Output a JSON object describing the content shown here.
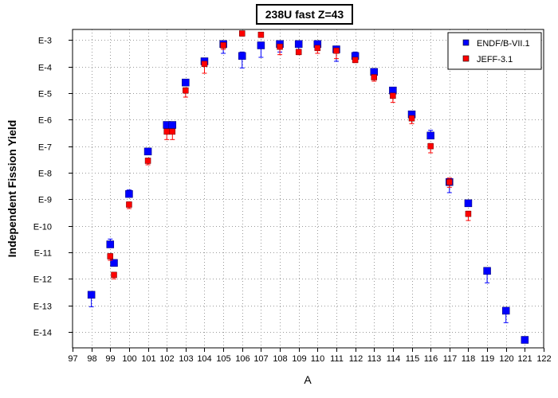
{
  "chart_data": {
    "type": "scatter",
    "title": "238U fast Z=43",
    "xlabel": "A",
    "ylabel": "Independent Fission Yield",
    "x_range": [
      97,
      122
    ],
    "x_ticks": [
      97,
      98,
      99,
      100,
      101,
      102,
      103,
      104,
      105,
      106,
      107,
      108,
      109,
      110,
      111,
      112,
      113,
      114,
      115,
      116,
      117,
      118,
      119,
      120,
      121,
      122
    ],
    "y_scale": "log",
    "y_range_exponent": [
      -14.6,
      -2.6
    ],
    "y_ticks": [
      {
        "exp": -3,
        "label": "E-3"
      },
      {
        "exp": -4,
        "label": "E-4"
      },
      {
        "exp": -5,
        "label": "E-5"
      },
      {
        "exp": -6,
        "label": "E-6"
      },
      {
        "exp": -7,
        "label": "E-7"
      },
      {
        "exp": -8,
        "label": "E-8"
      },
      {
        "exp": -9,
        "label": "E-9"
      },
      {
        "exp": -10,
        "label": "E-10"
      },
      {
        "exp": -11,
        "label": "E-11"
      },
      {
        "exp": -12,
        "label": "E-12"
      },
      {
        "exp": -13,
        "label": "E-13"
      },
      {
        "exp": -14,
        "label": "E-14"
      }
    ],
    "grid": true,
    "legend_position": "top-right",
    "series": [
      {
        "name": "ENDF/B-VII.1",
        "color": "#0000ff",
        "marker": "square",
        "points": [
          {
            "x": 98,
            "exp": -12.6,
            "err_lo": 0.45,
            "err_hi": 0.0
          },
          {
            "x": 99,
            "exp": -10.7,
            "err_lo": 0.1,
            "err_hi": 0.2
          },
          {
            "x": 99.2,
            "exp": -11.4,
            "err_lo": 0.1,
            "err_hi": 0.1
          },
          {
            "x": 100,
            "exp": -8.8,
            "err_lo": 0.1,
            "err_hi": 0.15
          },
          {
            "x": 101,
            "exp": -7.2,
            "err_lo": 0.05,
            "err_hi": 0.05
          },
          {
            "x": 102,
            "exp": -6.2,
            "err_lo": 0.1,
            "err_hi": 0.0
          },
          {
            "x": 102.3,
            "exp": -6.2,
            "err_lo": 0.1,
            "err_hi": 0.0
          },
          {
            "x": 103,
            "exp": -4.6,
            "err_lo": 0.1,
            "err_hi": 0.1
          },
          {
            "x": 104,
            "exp": -3.8,
            "err_lo": 0.1,
            "err_hi": 0.1
          },
          {
            "x": 105,
            "exp": -3.15,
            "err_lo": 0.35,
            "err_hi": 0.05
          },
          {
            "x": 106,
            "exp": -3.6,
            "err_lo": 0.45,
            "err_hi": 0.15
          },
          {
            "x": 107,
            "exp": -3.2,
            "err_lo": 0.45,
            "err_hi": 0.0
          },
          {
            "x": 108,
            "exp": -3.15,
            "err_lo": 0.3,
            "err_hi": 0.1
          },
          {
            "x": 109,
            "exp": -3.15,
            "err_lo": 0.2,
            "err_hi": 0.1
          },
          {
            "x": 110,
            "exp": -3.15,
            "err_lo": 0.2,
            "err_hi": 0.1
          },
          {
            "x": 111,
            "exp": -3.35,
            "err_lo": 0.45,
            "err_hi": 0.0
          },
          {
            "x": 112,
            "exp": -3.6,
            "err_lo": 0.1,
            "err_hi": 0.15
          },
          {
            "x": 113,
            "exp": -4.2,
            "err_lo": 0.05,
            "err_hi": 0.05
          },
          {
            "x": 114,
            "exp": -4.9,
            "err_lo": 0.1,
            "err_hi": 0.1
          },
          {
            "x": 115,
            "exp": -5.8,
            "err_lo": 0.1,
            "err_hi": 0.1
          },
          {
            "x": 116,
            "exp": -6.6,
            "err_lo": 0.1,
            "err_hi": 0.2
          },
          {
            "x": 117,
            "exp": -8.35,
            "err_lo": 0.4,
            "err_hi": 0.1
          },
          {
            "x": 118,
            "exp": -9.15,
            "err_lo": 0.1,
            "err_hi": 0.1
          },
          {
            "x": 119,
            "exp": -11.7,
            "err_lo": 0.45,
            "err_hi": 0.1
          },
          {
            "x": 120,
            "exp": -13.2,
            "err_lo": 0.45,
            "err_hi": 0.1
          },
          {
            "x": 121,
            "exp": -14.3,
            "err_lo": 0.0,
            "err_hi": 0.0
          }
        ]
      },
      {
        "name": "JEFF-3.1",
        "color": "#ff0000",
        "marker": "square",
        "points": [
          {
            "x": 99,
            "exp": -11.15,
            "err_lo": 0.15,
            "err_hi": 0.1
          },
          {
            "x": 99.2,
            "exp": -11.85,
            "err_lo": 0.15,
            "err_hi": 0.1
          },
          {
            "x": 100,
            "exp": -9.2,
            "err_lo": 0.15,
            "err_hi": 0.1
          },
          {
            "x": 101,
            "exp": -7.55,
            "err_lo": 0.15,
            "err_hi": 0.1
          },
          {
            "x": 102,
            "exp": -6.45,
            "err_lo": 0.3,
            "err_hi": 0.1
          },
          {
            "x": 102.3,
            "exp": -6.45,
            "err_lo": 0.3,
            "err_hi": 0.1
          },
          {
            "x": 103,
            "exp": -4.9,
            "err_lo": 0.25,
            "err_hi": 0.1
          },
          {
            "x": 104,
            "exp": -3.9,
            "err_lo": 0.35,
            "err_hi": 0.1
          },
          {
            "x": 105,
            "exp": -3.2,
            "err_lo": 0.15,
            "err_hi": 0.1
          },
          {
            "x": 106,
            "exp": -2.75,
            "err_lo": 0.1,
            "err_hi": 0.05
          },
          {
            "x": 107,
            "exp": -2.8,
            "err_lo": 0.1,
            "err_hi": 0.05
          },
          {
            "x": 108,
            "exp": -3.25,
            "err_lo": 0.3,
            "err_hi": 0.05
          },
          {
            "x": 109,
            "exp": -3.45,
            "err_lo": 0.1,
            "err_hi": 0.05
          },
          {
            "x": 110,
            "exp": -3.3,
            "err_lo": 0.2,
            "err_hi": 0.05
          },
          {
            "x": 111,
            "exp": -3.4,
            "err_lo": 0.3,
            "err_hi": 0.05
          },
          {
            "x": 112,
            "exp": -3.75,
            "err_lo": 0.1,
            "err_hi": 0.05
          },
          {
            "x": 113,
            "exp": -4.4,
            "err_lo": 0.15,
            "err_hi": 0.05
          },
          {
            "x": 114,
            "exp": -5.1,
            "err_lo": 0.25,
            "err_hi": 0.1
          },
          {
            "x": 115,
            "exp": -5.95,
            "err_lo": 0.2,
            "err_hi": 0.1
          },
          {
            "x": 116,
            "exp": -7.0,
            "err_lo": 0.25,
            "err_hi": 0.1
          },
          {
            "x": 117,
            "exp": -8.35,
            "err_lo": 0.2,
            "err_hi": 0.15
          },
          {
            "x": 118,
            "exp": -9.55,
            "err_lo": 0.25,
            "err_hi": 0.1
          }
        ]
      }
    ]
  }
}
